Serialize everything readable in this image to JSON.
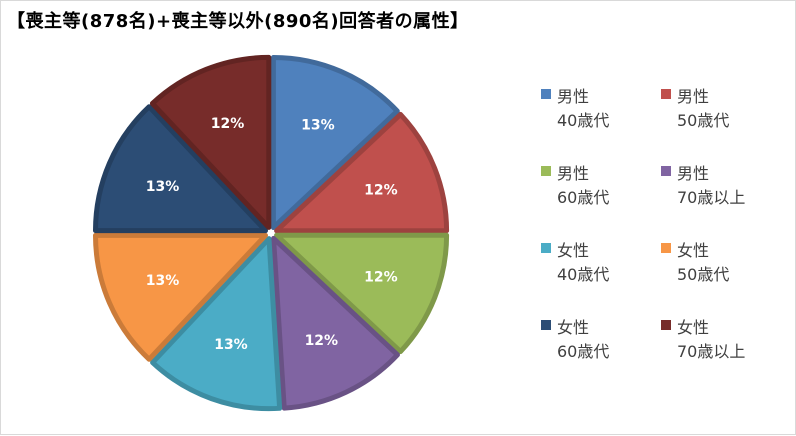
{
  "title": "【喪主等(878名)+喪主等以外(890名)回答者の属性】",
  "chart_data": {
    "type": "pie",
    "title": "【喪主等(878名)+喪主等以外(890名)回答者の属性】",
    "legend_position": "right",
    "slices": [
      {
        "gender": "男性",
        "age": "40歳代",
        "label": "13%",
        "value": 13,
        "color": "#4f81bd"
      },
      {
        "gender": "男性",
        "age": "50歳代",
        "label": "12%",
        "value": 12,
        "color": "#c0504d"
      },
      {
        "gender": "男性",
        "age": "60歳代",
        "label": "12%",
        "value": 12,
        "color": "#9bbb59"
      },
      {
        "gender": "男性",
        "age": "70歳以上",
        "label": "12%",
        "value": 12,
        "color": "#8064a2"
      },
      {
        "gender": "女性",
        "age": "40歳代",
        "label": "13%",
        "value": 13,
        "color": "#4bacc6"
      },
      {
        "gender": "女性",
        "age": "50歳代",
        "label": "13%",
        "value": 13,
        "color": "#f79646"
      },
      {
        "gender": "女性",
        "age": "60歳代",
        "label": "13%",
        "value": 13,
        "color": "#2c4d75"
      },
      {
        "gender": "女性",
        "age": "70歳以上",
        "label": "12%",
        "value": 12,
        "color": "#772c2a"
      }
    ]
  }
}
